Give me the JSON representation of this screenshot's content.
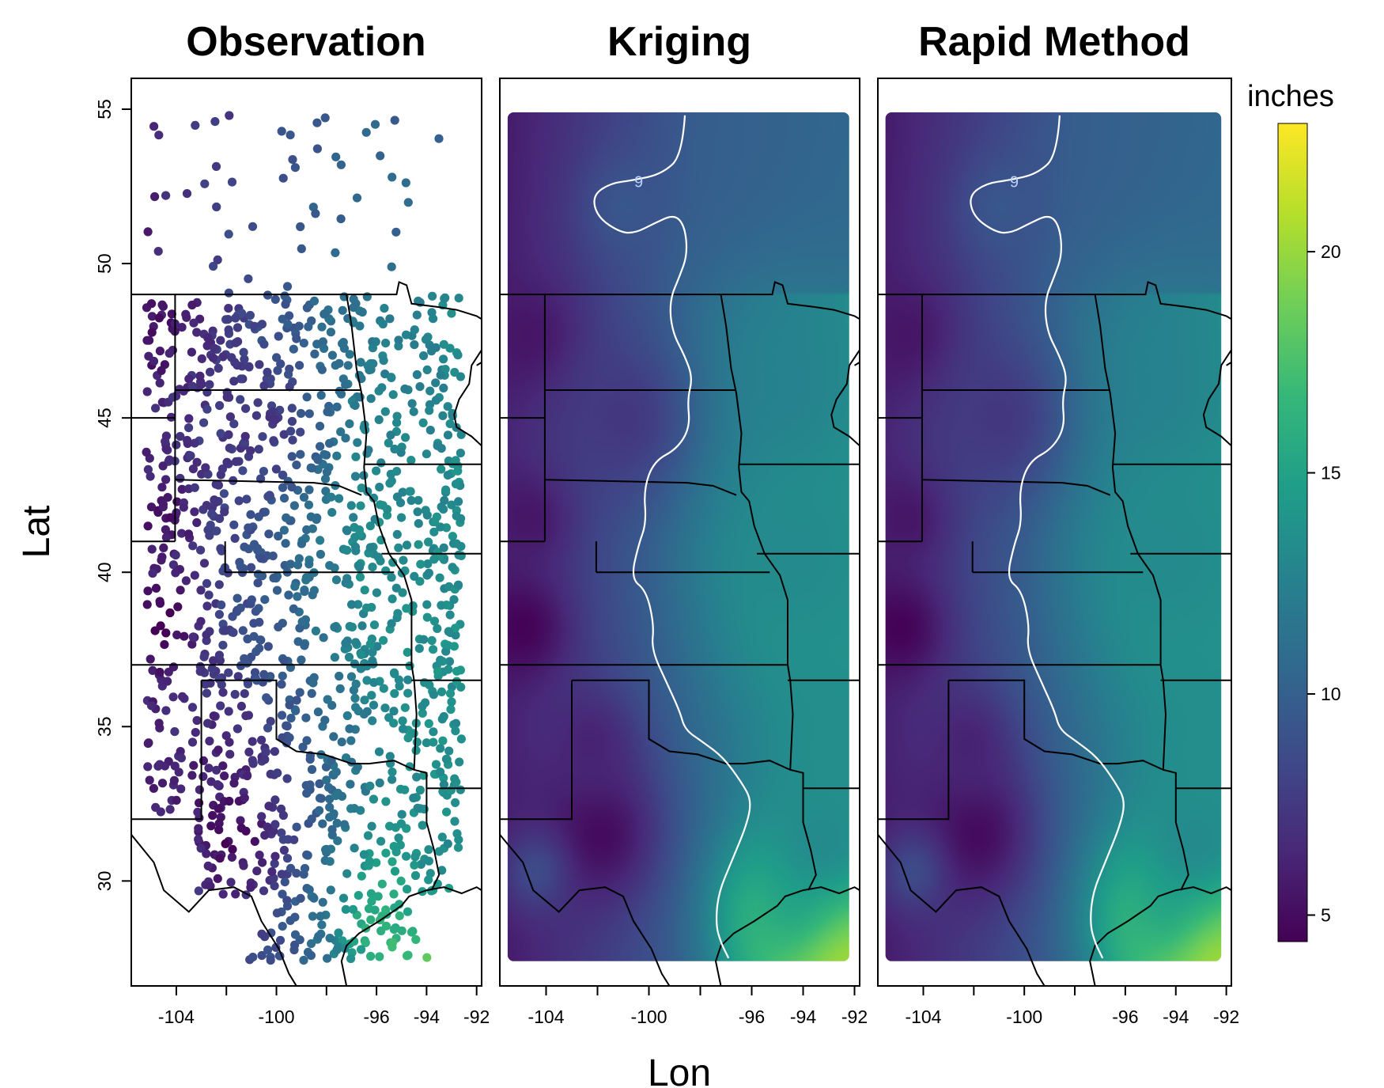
{
  "chart_data": {
    "type": "heatmap",
    "panels": [
      {
        "title": "Observation",
        "kind": "points"
      },
      {
        "title": "Kriging",
        "kind": "surface",
        "contour_label": "9"
      },
      {
        "title": "Rapid Method",
        "kind": "surface",
        "contour_label": "9"
      }
    ],
    "xlabel": "Lon",
    "ylabel": "Lat",
    "x_ticks": [
      -104,
      -100,
      -96,
      -94,
      -92
    ],
    "x_tick_labels": [
      "-104",
      "-100",
      "-96",
      "-94",
      "-92"
    ],
    "y_ticks": [
      55,
      50,
      45,
      40,
      35,
      30
    ],
    "y_tick_labels": [
      "55",
      "50",
      "45",
      "40",
      "35",
      "30"
    ],
    "xlim": [
      -105.8,
      -91.8
    ],
    "ylim": [
      26.6,
      56
    ],
    "surface_extent": {
      "lon": [
        -105.5,
        -92.2
      ],
      "lat": [
        27.4,
        54.9
      ]
    },
    "colorbar": {
      "title": "inches",
      "ticks": [
        5,
        10,
        15,
        20
      ],
      "tick_labels": [
        "5",
        "10",
        "15",
        "20"
      ],
      "range": [
        4.4,
        22.9
      ],
      "palette": [
        "#440154",
        "#482878",
        "#3e4a89",
        "#31688e",
        "#26828e",
        "#1f9e89",
        "#35b779",
        "#6ece58",
        "#b5de2b",
        "#fde725"
      ]
    },
    "contour_level": 9,
    "contour_path": [
      [
        -98.6,
        54.8
      ],
      [
        -98.7,
        53.5
      ],
      [
        -99.5,
        52.9
      ],
      [
        -100.6,
        52.7
      ],
      [
        -101.5,
        52.6
      ],
      [
        -102.2,
        52.2
      ],
      [
        -102.0,
        51.5
      ],
      [
        -101.1,
        51.0
      ],
      [
        -100.5,
        51.0
      ],
      [
        -99.8,
        51.3
      ],
      [
        -99.0,
        51.6
      ],
      [
        -98.6,
        51.2
      ],
      [
        -98.5,
        50.3
      ],
      [
        -98.8,
        49.6
      ],
      [
        -99.2,
        48.8
      ],
      [
        -99.1,
        47.8
      ],
      [
        -98.6,
        47.0
      ],
      [
        -98.3,
        46.3
      ],
      [
        -98.5,
        45.6
      ],
      [
        -98.4,
        44.7
      ],
      [
        -98.9,
        44.0
      ],
      [
        -99.8,
        43.6
      ],
      [
        -100.2,
        42.7
      ],
      [
        -100.1,
        41.6
      ],
      [
        -100.4,
        40.9
      ],
      [
        -100.7,
        39.8
      ],
      [
        -100.1,
        39.4
      ],
      [
        -99.8,
        38.3
      ],
      [
        -99.9,
        37.5
      ],
      [
        -99.3,
        36.4
      ],
      [
        -98.8,
        35.5
      ],
      [
        -98.6,
        34.9
      ],
      [
        -97.9,
        34.5
      ],
      [
        -97.1,
        34.0
      ],
      [
        -96.4,
        33.2
      ],
      [
        -96.0,
        32.6
      ],
      [
        -96.2,
        31.8
      ],
      [
        -96.8,
        30.6
      ],
      [
        -97.3,
        29.6
      ],
      [
        -97.4,
        28.6
      ],
      [
        -97.2,
        28.0
      ],
      [
        -96.9,
        27.5
      ]
    ],
    "surface_blobs": [
      {
        "lon": -93.1,
        "lat": 28.2,
        "value": 22.9,
        "radius": 3.2
      },
      {
        "lon": -94.8,
        "lat": 29.1,
        "value": 16.5,
        "radius": 2.4
      },
      {
        "lon": -93.2,
        "lat": 31.5,
        "value": 13.0,
        "radius": 2.6
      },
      {
        "lon": -93.0,
        "lat": 42.8,
        "value": 14.2,
        "radius": 4.6
      },
      {
        "lon": -93.6,
        "lat": 38.5,
        "value": 14.0,
        "radius": 3.6
      },
      {
        "lon": -92.6,
        "lat": 34.3,
        "value": 13.5,
        "radius": 3.2
      },
      {
        "lon": -95.0,
        "lat": 45.8,
        "value": 12.6,
        "radius": 3.6
      },
      {
        "lon": -94.3,
        "lat": 40.6,
        "value": 13.2,
        "radius": 3.0
      },
      {
        "lon": -104.9,
        "lat": 38.2,
        "value": 4.5,
        "radius": 1.7
      },
      {
        "lon": -104.6,
        "lat": 41.8,
        "value": 5.4,
        "radius": 1.6
      },
      {
        "lon": -104.5,
        "lat": 47.5,
        "value": 5.3,
        "radius": 1.9
      },
      {
        "lon": -102.0,
        "lat": 31.6,
        "value": 4.8,
        "radius": 2.3
      },
      {
        "lon": -102.3,
        "lat": 34.4,
        "value": 6.2,
        "radius": 1.8
      },
      {
        "lon": -104.4,
        "lat": 30.3,
        "value": 8.6,
        "radius": 1.3
      },
      {
        "lon": -100.9,
        "lat": 51.8,
        "value": 9.4,
        "radius": 1.6
      },
      {
        "lon": -101.0,
        "lat": 45.0,
        "value": 7.4,
        "radius": 2.8
      }
    ],
    "state_lines": [
      [
        [
          -105.8,
          49.0
        ],
        [
          -95.2,
          49.0
        ],
        [
          -95.1,
          49.4
        ],
        [
          -94.8,
          49.3
        ],
        [
          -94.6,
          48.7
        ],
        [
          -93.6,
          48.6
        ],
        [
          -92.8,
          48.5
        ],
        [
          -92.0,
          48.3
        ],
        [
          -91.8,
          48.2
        ]
      ],
      [
        [
          -104.05,
          49.0
        ],
        [
          -104.05,
          41.0
        ]
      ],
      [
        [
          -97.2,
          49.0
        ],
        [
          -97.0,
          48.0
        ],
        [
          -96.8,
          46.6
        ],
        [
          -96.6,
          45.8
        ],
        [
          -96.4,
          44.5
        ],
        [
          -96.5,
          43.4
        ],
        [
          -96.4,
          42.6
        ],
        [
          -96.1,
          42.3
        ],
        [
          -95.9,
          41.5
        ],
        [
          -95.5,
          40.6
        ],
        [
          -94.9,
          39.9
        ],
        [
          -94.6,
          39.1
        ],
        [
          -94.6,
          37.0
        ],
        [
          -94.5,
          36.5
        ],
        [
          -94.4,
          35.4
        ],
        [
          -94.5,
          33.6
        ],
        [
          -94.0,
          33.5
        ],
        [
          -94.0,
          31.9
        ],
        [
          -93.7,
          31.0
        ],
        [
          -93.5,
          30.2
        ],
        [
          -93.8,
          29.7
        ]
      ],
      [
        [
          -104.05,
          45.9
        ],
        [
          -96.6,
          45.9
        ]
      ],
      [
        [
          -104.05,
          43.0
        ],
        [
          -98.5,
          42.9
        ],
        [
          -97.5,
          42.8
        ],
        [
          -96.6,
          42.5
        ]
      ],
      [
        [
          -102.05,
          41.0
        ],
        [
          -102.05,
          40.0
        ]
      ],
      [
        [
          -104.05,
          41.0
        ],
        [
          -105.8,
          41.0
        ]
      ],
      [
        [
          -102.05,
          40.0
        ],
        [
          -95.3,
          40.0
        ]
      ],
      [
        [
          -103.0,
          37.0
        ],
        [
          -94.6,
          37.0
        ]
      ],
      [
        [
          -103.0,
          37.0
        ],
        [
          -105.8,
          37.0
        ]
      ],
      [
        [
          -103.0,
          36.5
        ],
        [
          -100.0,
          36.5
        ],
        [
          -100.0,
          34.6
        ],
        [
          -99.2,
          34.2
        ],
        [
          -98.1,
          34.1
        ],
        [
          -97.0,
          33.8
        ],
        [
          -96.3,
          33.8
        ],
        [
          -95.3,
          33.9
        ],
        [
          -94.5,
          33.6
        ]
      ],
      [
        [
          -103.0,
          36.5
        ],
        [
          -103.0,
          32.0
        ],
        [
          -105.8,
          32.0
        ]
      ],
      [
        [
          -104.05,
          45.0
        ],
        [
          -105.8,
          45.0
        ]
      ],
      [
        [
          -96.5,
          43.5
        ],
        [
          -91.8,
          43.5
        ]
      ],
      [
        [
          -95.8,
          40.6
        ],
        [
          -91.8,
          40.6
        ]
      ],
      [
        [
          -94.6,
          36.5
        ],
        [
          -91.8,
          36.5
        ]
      ],
      [
        [
          -94.0,
          33.0
        ],
        [
          -91.8,
          33.0
        ]
      ],
      [
        [
          -92.0,
          46.7
        ],
        [
          -91.8,
          46.8
        ]
      ],
      [
        [
          -91.8,
          47.2
        ],
        [
          -92.2,
          46.7
        ],
        [
          -92.3,
          46.1
        ],
        [
          -92.7,
          45.6
        ],
        [
          -92.9,
          45.1
        ],
        [
          -92.8,
          44.7
        ],
        [
          -92.2,
          44.4
        ],
        [
          -91.8,
          44.1
        ]
      ],
      [
        [
          -91.8,
          31.1
        ],
        [
          -91.8,
          31.0
        ]
      ],
      [
        [
          -105.8,
          31.5
        ],
        [
          -104.9,
          30.6
        ],
        [
          -104.5,
          29.7
        ],
        [
          -103.5,
          29.0
        ],
        [
          -102.7,
          29.7
        ],
        [
          -101.7,
          29.8
        ],
        [
          -101.0,
          29.5
        ],
        [
          -100.6,
          28.7
        ],
        [
          -99.9,
          27.8
        ],
        [
          -99.5,
          27.0
        ],
        [
          -99.2,
          26.6
        ]
      ],
      [
        [
          -97.2,
          26.6
        ],
        [
          -97.4,
          27.4
        ],
        [
          -97.2,
          27.9
        ],
        [
          -96.7,
          28.3
        ],
        [
          -95.9,
          28.7
        ],
        [
          -95.0,
          29.2
        ],
        [
          -94.7,
          29.5
        ],
        [
          -94.0,
          29.7
        ],
        [
          -93.3,
          29.8
        ],
        [
          -92.6,
          29.6
        ],
        [
          -92.0,
          29.8
        ],
        [
          -91.8,
          29.7
        ]
      ]
    ],
    "obs_points_description_free": true
  }
}
